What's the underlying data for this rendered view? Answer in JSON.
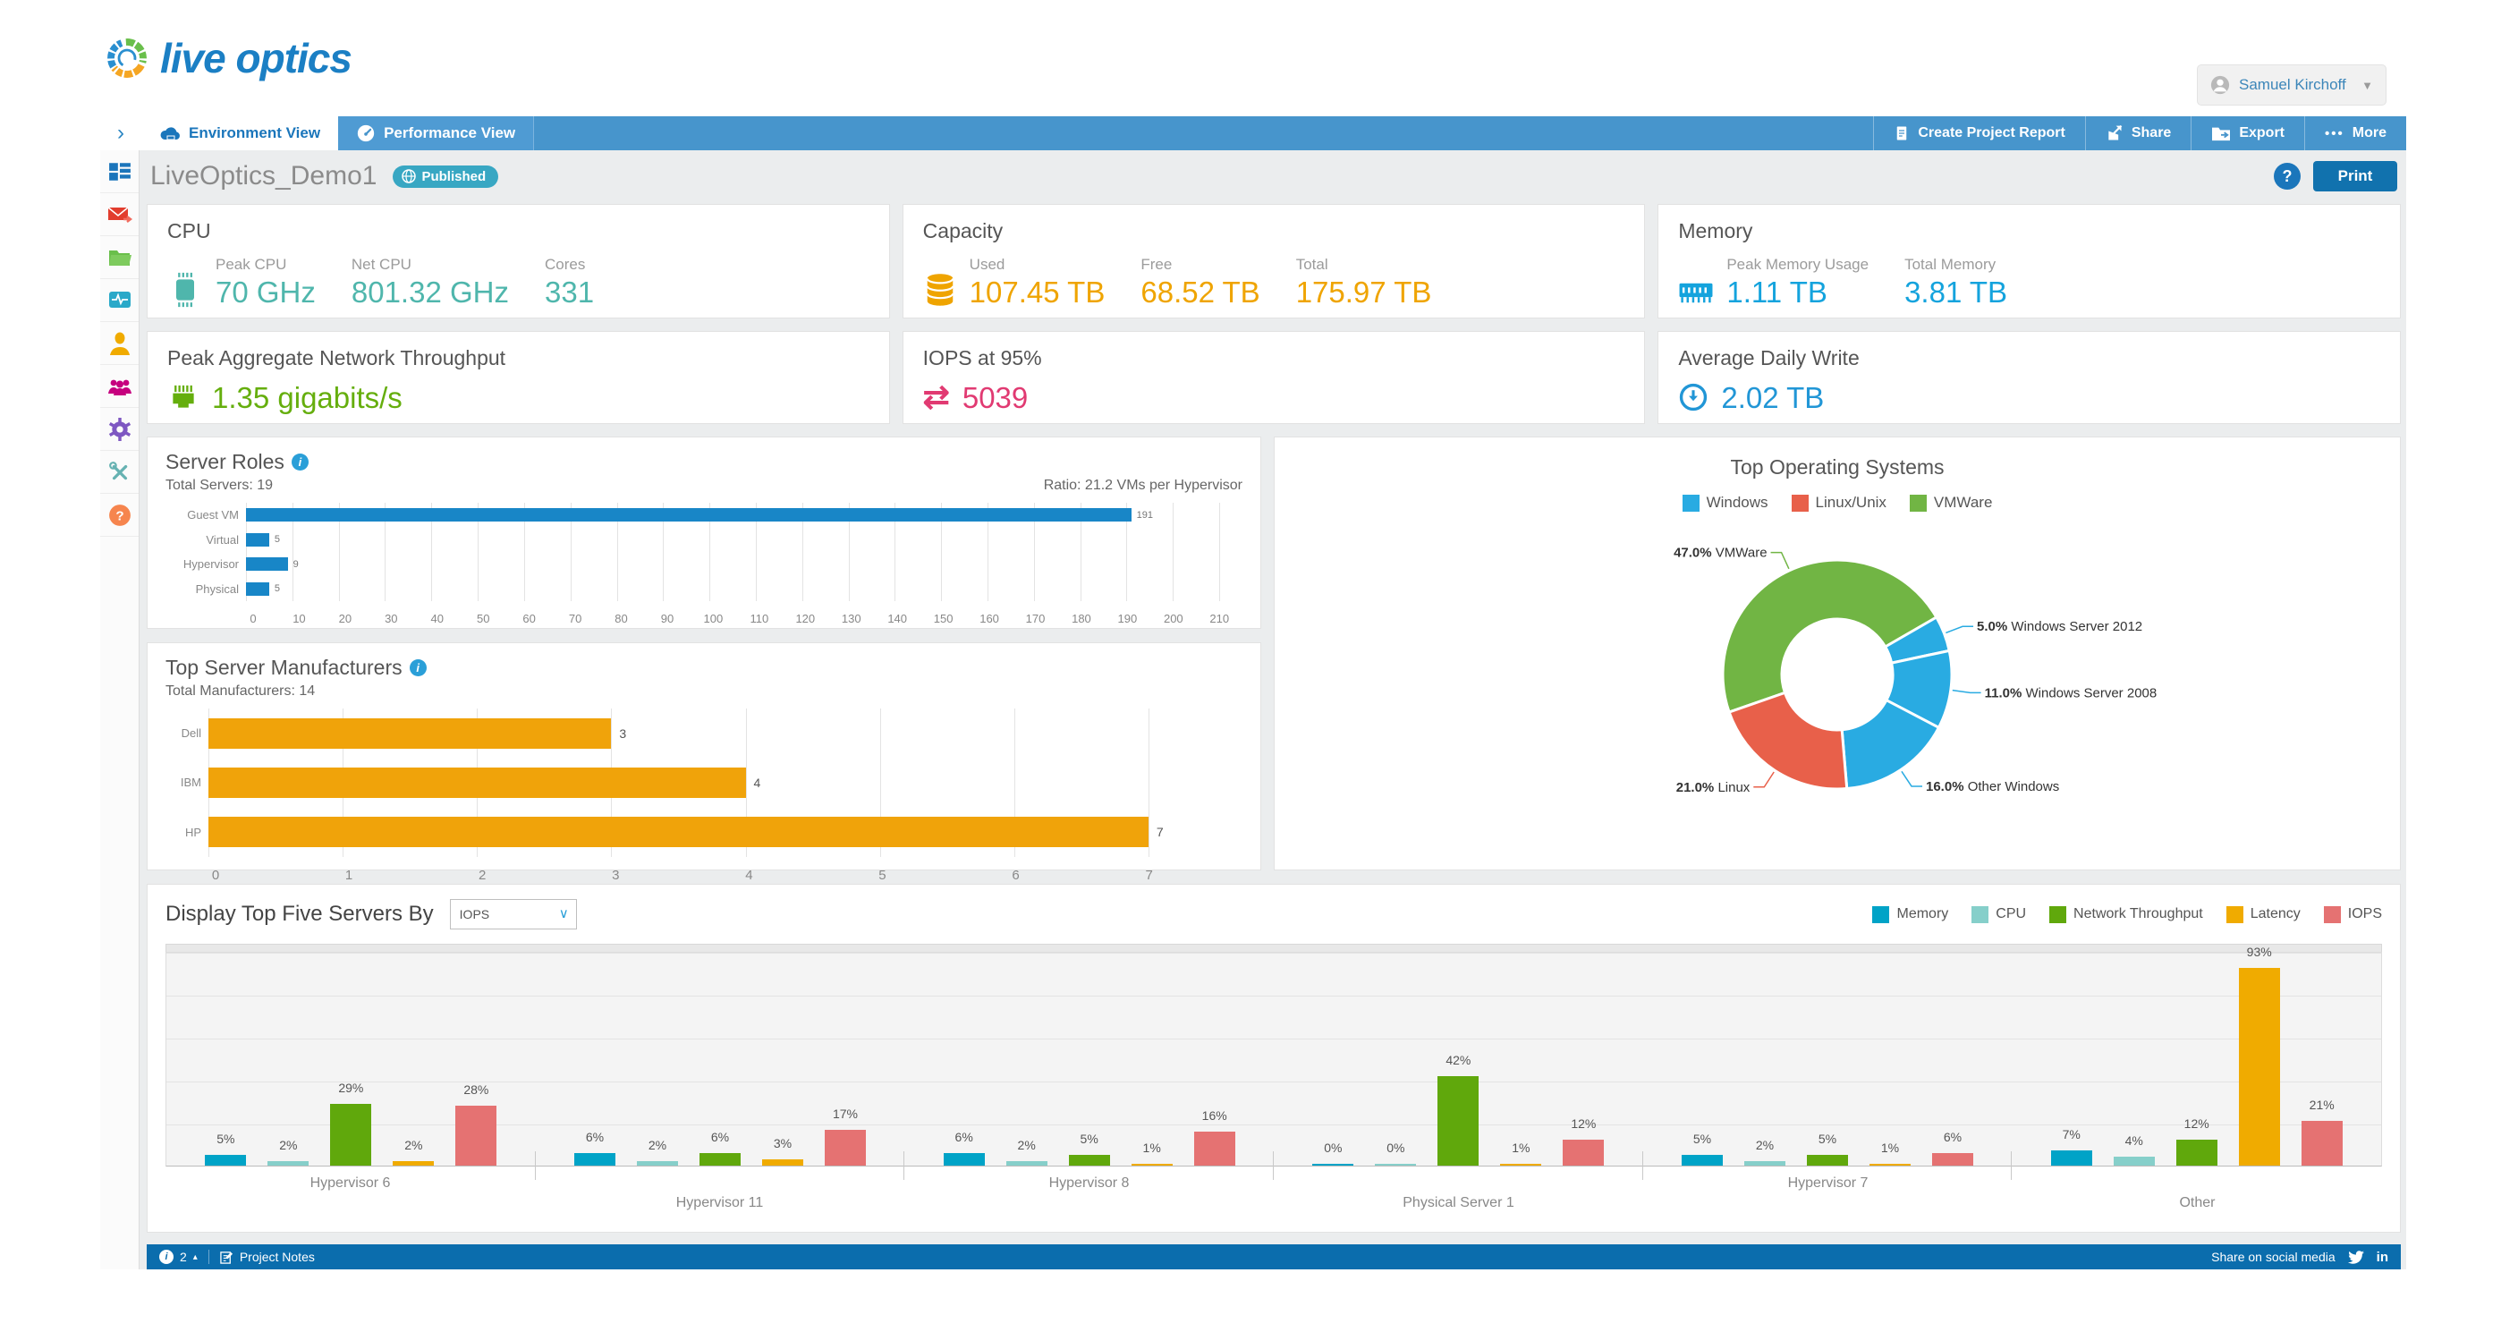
{
  "brand": {
    "logo_text": "live optics"
  },
  "user": {
    "name": "Samuel Kirchoff"
  },
  "nav": {
    "collapse_glyph": "›",
    "tabs": [
      {
        "label": "Environment View"
      },
      {
        "label": "Performance View"
      }
    ],
    "actions": [
      {
        "label": "Create Project Report"
      },
      {
        "label": "Share"
      },
      {
        "label": "Export"
      },
      {
        "label": "More",
        "prefix": "•••"
      }
    ]
  },
  "page": {
    "title": "LiveOptics_Demo1",
    "badge": "Published",
    "help_glyph": "?",
    "print_label": "Print"
  },
  "cards": {
    "cpu": {
      "title": "CPU",
      "accent": "#4fb6ac",
      "metrics": [
        {
          "label": "Peak CPU",
          "value": "70 GHz"
        },
        {
          "label": "Net CPU",
          "value": "801.32 GHz"
        },
        {
          "label": "Cores",
          "value": "331"
        }
      ]
    },
    "capacity": {
      "title": "Capacity",
      "accent": "#efa400",
      "metrics": [
        {
          "label": "Used",
          "value": "107.45 TB"
        },
        {
          "label": "Free",
          "value": "68.52 TB"
        },
        {
          "label": "Total",
          "value": "175.97 TB"
        }
      ]
    },
    "memory": {
      "title": "Memory",
      "accent": "#14a3dd",
      "metrics": [
        {
          "label": "Peak Memory Usage",
          "value": "1.11 TB"
        },
        {
          "label": "Total Memory",
          "value": "3.81 TB"
        }
      ]
    },
    "network": {
      "title": "Peak Aggregate Network Throughput",
      "accent": "#65ae0d",
      "value": "1.35 gigabits/s"
    },
    "iops": {
      "title": "IOPS at 95%",
      "accent": "#e13a72",
      "value": "5039",
      "glyph": "⇄"
    },
    "daily_write": {
      "title": "Average Daily Write",
      "accent": "#2196d6",
      "value": "2.02 TB"
    }
  },
  "chart_data": [
    {
      "id": "server_roles",
      "type": "bar",
      "orientation": "horizontal",
      "title": "Server Roles",
      "subtitle_left": "Total Servers: 19",
      "subtitle_right": "Ratio: 21.2 VMs per Hypervisor",
      "categories": [
        "Guest VM",
        "Virtual",
        "Hypervisor",
        "Physical"
      ],
      "values": [
        191,
        5,
        9,
        5
      ],
      "axis": {
        "min": 0,
        "max": 215,
        "tick_step": 10,
        "tick_max": 210
      },
      "bar_color": "#1886c7",
      "grid": true
    },
    {
      "id": "manufacturers",
      "type": "bar",
      "orientation": "horizontal",
      "title": "Top Server Manufacturers",
      "subtitle_left": "Total Manufacturers: 14",
      "categories": [
        "Dell",
        "IBM",
        "HP"
      ],
      "values": [
        3,
        4,
        7
      ],
      "axis": {
        "min": 0,
        "max": 7.7,
        "tick_step": 1,
        "tick_max": 7
      },
      "bar_color": "#f0a30a",
      "grid": true
    },
    {
      "id": "top_os",
      "type": "pie",
      "title": "Top Operating Systems",
      "legend": [
        {
          "label": "Windows",
          "color": "#29abe2"
        },
        {
          "label": "Linux/Unix",
          "color": "#e8604a"
        },
        {
          "label": "VMWare",
          "color": "#71b544"
        }
      ],
      "start_angle": -109.2,
      "slices": [
        {
          "label": "VMWare",
          "pct": 47.0,
          "color": "#71b544"
        },
        {
          "label": "Windows Server 2012",
          "pct": 5.0,
          "color": "#29abe2"
        },
        {
          "label": "Windows Server 2008",
          "pct": 11.0,
          "color": "#29abe2"
        },
        {
          "label": "Other Windows",
          "pct": 16.0,
          "color": "#29abe2"
        },
        {
          "label": "Linux",
          "pct": 21.0,
          "color": "#e8604a"
        }
      ]
    },
    {
      "id": "top_servers",
      "type": "bar",
      "grouped": true,
      "categories": [
        "Hypervisor 6",
        "Hypervisor 11",
        "Hypervisor 8",
        "Physical Server 1",
        "Hypervisor 7",
        "Other"
      ],
      "series": [
        {
          "name": "Memory",
          "color": "#00a3c7",
          "values": [
            5,
            6,
            6,
            0,
            5,
            7
          ]
        },
        {
          "name": "CPU",
          "color": "#86cfca",
          "values": [
            2,
            2,
            2,
            0,
            2,
            4
          ]
        },
        {
          "name": "Network Throughput",
          "color": "#60a80c",
          "values": [
            29,
            6,
            5,
            42,
            5,
            12
          ]
        },
        {
          "name": "Latency",
          "color": "#f0ab00",
          "values": [
            2,
            3,
            1,
            1,
            1,
            93
          ]
        },
        {
          "name": "IOPS",
          "color": "#e57272",
          "values": [
            28,
            17,
            16,
            12,
            6,
            21
          ]
        }
      ],
      "value_suffix": "%",
      "ylim": [
        0,
        100
      ],
      "grid": true,
      "legend_position": "top-right"
    }
  ],
  "bottom": {
    "selector_label": "Display Top Five Servers By",
    "selector_value": "IOPS"
  },
  "footer": {
    "notes_count": "2",
    "project_notes_label": "Project Notes",
    "share_label": "Share on social media",
    "linkedin_label": "in"
  }
}
